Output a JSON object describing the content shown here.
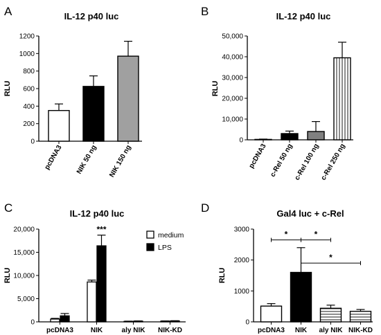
{
  "chart_data": [
    {
      "panel": "A",
      "type": "bar",
      "title": "IL-12 p40 luc",
      "ylabel": "RLU",
      "ylim": [
        0,
        1200
      ],
      "yticks": [
        "0",
        "200",
        "400",
        "600",
        "800",
        "1000",
        "1200"
      ],
      "categories": [
        "pcDNA3",
        "NIK 50 ng",
        "NIK 150 ng"
      ],
      "values": [
        350,
        625,
        970
      ],
      "errors": [
        75,
        120,
        170
      ],
      "fills": [
        "#ffffff",
        "#000000",
        "#a0a0a0"
      ],
      "patterns": [
        "none",
        "none",
        "none"
      ]
    },
    {
      "panel": "B",
      "type": "bar",
      "title": "IL-12 p40 luc",
      "ylabel": "RLU",
      "ylim": [
        0,
        50000
      ],
      "yticks": [
        "0",
        "10,000",
        "20,000",
        "30,000",
        "40,000",
        "50,000"
      ],
      "categories": [
        "pcDNA3",
        "c-Rel 50 ng",
        "c-Rel 100 ng",
        "c-Rel 250 ng"
      ],
      "values": [
        200,
        3000,
        4000,
        39500
      ],
      "errors": [
        150,
        1200,
        4800,
        7500
      ],
      "fills": [
        "#ffffff",
        "#000000",
        "#808080",
        "#ffffff"
      ],
      "patterns": [
        "none",
        "none",
        "none",
        "vertical"
      ]
    },
    {
      "panel": "C",
      "type": "bar",
      "title": "IL-12 p40 luc",
      "ylabel": "RLU",
      "ylim": [
        0,
        20000
      ],
      "yticks": [
        "0",
        "5,000",
        "10,000",
        "15,000",
        "20,000"
      ],
      "categories": [
        "pcDNA3",
        "NIK",
        "aly NIK",
        "NIK-KD"
      ],
      "series": [
        {
          "name": "medium",
          "values": [
            600,
            8600,
            100,
            150
          ],
          "errors": [
            150,
            400,
            50,
            50
          ],
          "fill": "#ffffff"
        },
        {
          "name": "LPS",
          "values": [
            1300,
            16400,
            150,
            200
          ],
          "errors": [
            500,
            2300,
            50,
            50
          ],
          "fill": "#000000"
        }
      ],
      "annotations": [
        {
          "category": "NIK",
          "series": "LPS",
          "text": "***"
        }
      ],
      "legend": "top-right"
    },
    {
      "panel": "D",
      "type": "bar",
      "title": "Gal4 luc + c-Rel",
      "ylabel": "RLU",
      "ylim": [
        0,
        3000
      ],
      "yticks": [
        "0",
        "1000",
        "2000",
        "3000"
      ],
      "categories": [
        "pcDNA3",
        "NIK",
        "aly NIK",
        "NIK-KD"
      ],
      "values": [
        510,
        1600,
        440,
        340
      ],
      "errors": [
        80,
        800,
        100,
        60
      ],
      "fills": [
        "#ffffff",
        "#000000",
        "#ffffff",
        "#ffffff"
      ],
      "patterns": [
        "none",
        "none",
        "horizontal",
        "horizontal"
      ],
      "significance": [
        {
          "from": 0,
          "to": 1,
          "y": 2650,
          "text": "*"
        },
        {
          "from": 1,
          "to": 2,
          "y": 2650,
          "text": "*"
        },
        {
          "from": 1,
          "to": 3,
          "y": 1900,
          "text": "*"
        }
      ]
    }
  ]
}
